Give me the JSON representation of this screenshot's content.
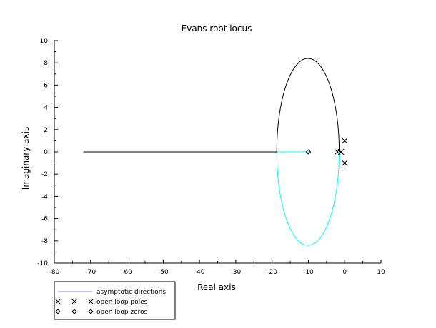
{
  "chart_data": {
    "type": "line",
    "title": "Evans root locus",
    "xlabel": "Real axis",
    "ylabel": "Imaginary axis",
    "xlim": [
      -80,
      10
    ],
    "ylim": [
      -10,
      10
    ],
    "xticks": [
      -80,
      -70,
      -60,
      -50,
      -40,
      -30,
      -20,
      -10,
      0,
      10
    ],
    "yticks": [
      -10,
      -8,
      -6,
      -4,
      -2,
      0,
      2,
      4,
      6,
      8,
      10
    ],
    "grid": false,
    "legend_position": "bottom-left outside",
    "colors": {
      "upper_branch": "#000000",
      "lower_branch": "#00ffff",
      "asymptote": "#7f7fff",
      "markers": "#000000"
    },
    "series": [
      {
        "key": "real-axis-branch",
        "color": "#000000",
        "points": [
          [
            -72,
            0
          ],
          [
            -18.7,
            0
          ]
        ]
      },
      {
        "key": "upper-loop",
        "color": "#000000",
        "shape": "half-ellipse",
        "center": [
          -10.1,
          0
        ],
        "half_width": 8.6,
        "height": 8.4,
        "start": [
          -18.7,
          0
        ],
        "end": [
          -1.0,
          0
        ]
      },
      {
        "key": "lower-loop",
        "color": "#00ffff",
        "shape": "half-ellipse",
        "center": [
          -10.1,
          0
        ],
        "half_width": 8.6,
        "height": -8.4,
        "start": [
          -18.7,
          0
        ],
        "end": [
          -1.0,
          0
        ]
      },
      {
        "key": "cyan-axis-segment",
        "color": "#00ffff",
        "points": [
          [
            -18.7,
            0
          ],
          [
            -10,
            0
          ]
        ]
      }
    ],
    "poles": [
      [
        0,
        1
      ],
      [
        0,
        -1
      ],
      [
        -2,
        0
      ],
      [
        -1,
        0
      ]
    ],
    "zeros": [
      [
        -10,
        0
      ]
    ],
    "legend": [
      {
        "label": "asymptotic directions",
        "kind": "line"
      },
      {
        "label": "open loop poles",
        "kind": "x"
      },
      {
        "label": "open loop zeros",
        "kind": "diamond"
      }
    ]
  }
}
